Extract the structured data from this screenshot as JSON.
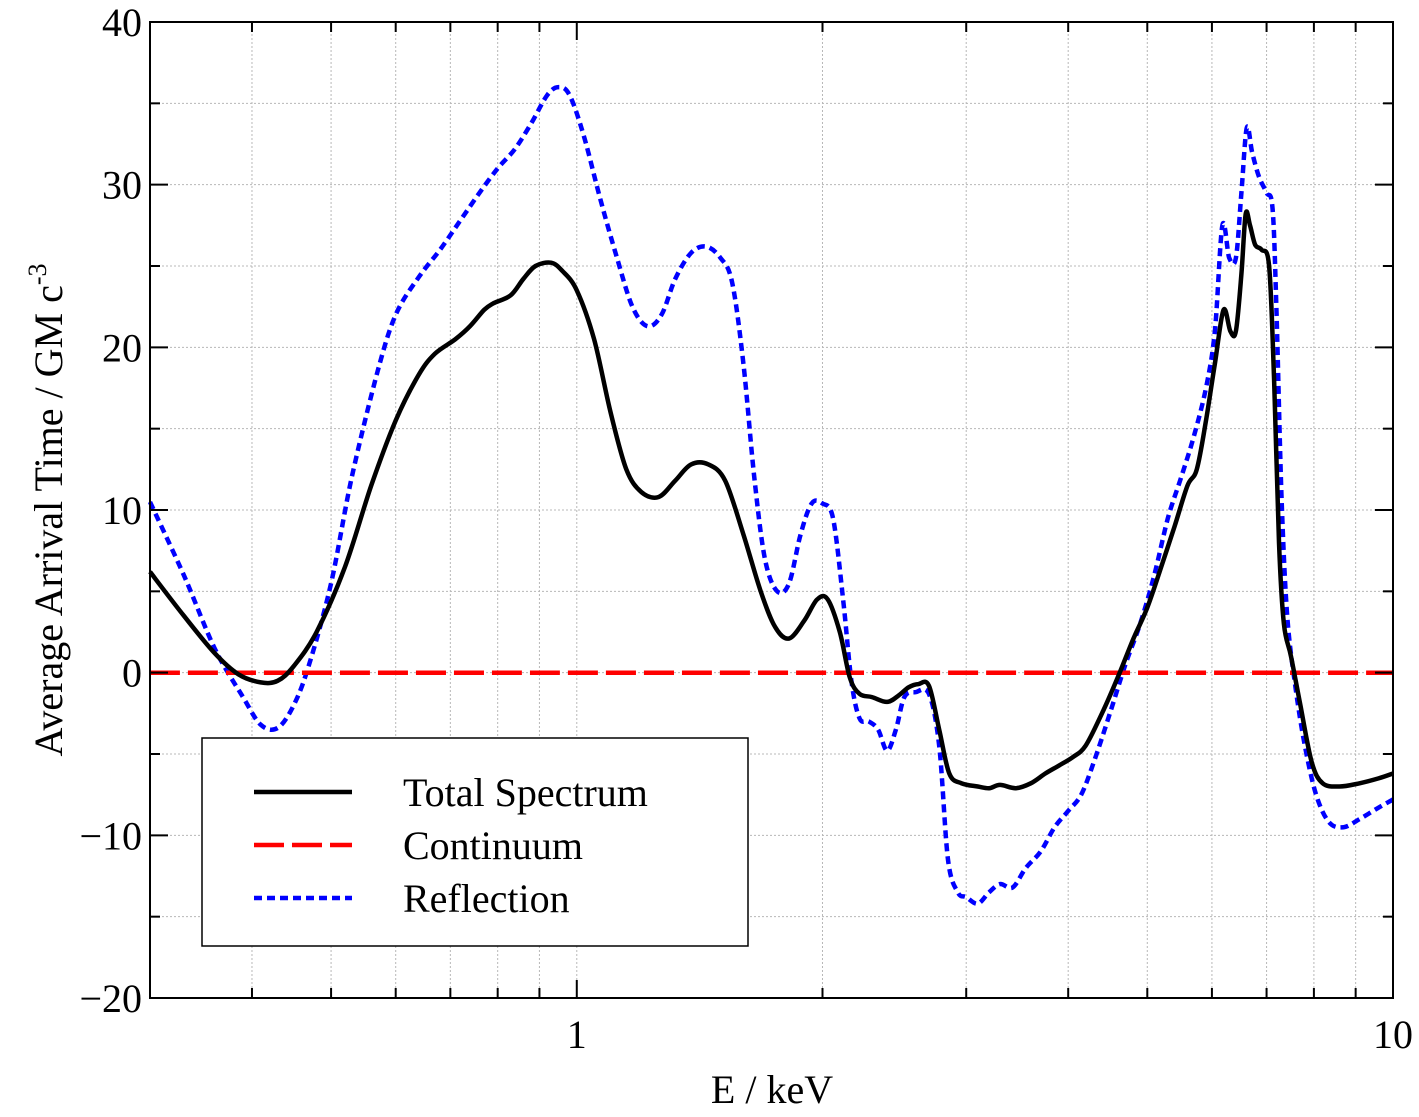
{
  "chart_data": {
    "type": "line",
    "title": "",
    "xlabel": "E / keV",
    "ylabel": "Average Arrival Time / GM c",
    "ylabel_superscript": "-3",
    "xscale": "log",
    "xlim": [
      0.3,
      10
    ],
    "ylim": [
      -20,
      40
    ],
    "grid": true,
    "legend_position": "lower-left",
    "x_ticks": [
      {
        "value": 1,
        "label": "1"
      },
      {
        "value": 10,
        "label": "10"
      }
    ],
    "y_ticks": [
      {
        "value": -20,
        "label": "−20"
      },
      {
        "value": -10,
        "label": "−10"
      },
      {
        "value": 0,
        "label": "0"
      },
      {
        "value": 10,
        "label": "10"
      },
      {
        "value": 20,
        "label": "20"
      },
      {
        "value": 30,
        "label": "30"
      },
      {
        "value": 40,
        "label": "40"
      }
    ],
    "series": [
      {
        "name": "Total Spectrum",
        "color": "#000000",
        "style": "solid",
        "points": [
          [
            0.3,
            6.2
          ],
          [
            0.33,
            3.5
          ],
          [
            0.36,
            1.2
          ],
          [
            0.385,
            -0.1
          ],
          [
            0.41,
            -0.6
          ],
          [
            0.43,
            -0.5
          ],
          [
            0.45,
            0.4
          ],
          [
            0.48,
            2.5
          ],
          [
            0.52,
            6.5
          ],
          [
            0.56,
            11.5
          ],
          [
            0.6,
            15.5
          ],
          [
            0.64,
            18.3
          ],
          [
            0.67,
            19.6
          ],
          [
            0.71,
            20.5
          ],
          [
            0.74,
            21.3
          ],
          [
            0.77,
            22.3
          ],
          [
            0.79,
            22.7
          ],
          [
            0.83,
            23.2
          ],
          [
            0.86,
            24.2
          ],
          [
            0.89,
            25.0
          ],
          [
            0.93,
            25.2
          ],
          [
            0.96,
            24.7
          ],
          [
            1.0,
            23.5
          ],
          [
            1.05,
            20.5
          ],
          [
            1.1,
            16.0
          ],
          [
            1.15,
            12.5
          ],
          [
            1.2,
            11.1
          ],
          [
            1.26,
            10.8
          ],
          [
            1.32,
            11.8
          ],
          [
            1.38,
            12.8
          ],
          [
            1.45,
            12.8
          ],
          [
            1.52,
            11.8
          ],
          [
            1.6,
            8.5
          ],
          [
            1.68,
            5.0
          ],
          [
            1.75,
            2.8
          ],
          [
            1.82,
            2.1
          ],
          [
            1.9,
            3.2
          ],
          [
            1.97,
            4.5
          ],
          [
            2.03,
            4.5
          ],
          [
            2.1,
            2.5
          ],
          [
            2.16,
            -0.3
          ],
          [
            2.22,
            -1.3
          ],
          [
            2.3,
            -1.5
          ],
          [
            2.4,
            -1.8
          ],
          [
            2.48,
            -1.4
          ],
          [
            2.55,
            -0.9
          ],
          [
            2.62,
            -0.7
          ],
          [
            2.7,
            -0.8
          ],
          [
            2.78,
            -3.5
          ],
          [
            2.86,
            -6.2
          ],
          [
            2.96,
            -6.8
          ],
          [
            3.1,
            -7.0
          ],
          [
            3.2,
            -7.1
          ],
          [
            3.3,
            -6.9
          ],
          [
            3.45,
            -7.1
          ],
          [
            3.6,
            -6.8
          ],
          [
            3.75,
            -6.2
          ],
          [
            3.9,
            -5.7
          ],
          [
            4.05,
            -5.2
          ],
          [
            4.2,
            -4.5
          ],
          [
            4.4,
            -2.5
          ],
          [
            4.6,
            -0.3
          ],
          [
            4.8,
            2.0
          ],
          [
            5.0,
            4.0
          ],
          [
            5.2,
            6.5
          ],
          [
            5.4,
            9.0
          ],
          [
            5.6,
            11.5
          ],
          [
            5.75,
            12.5
          ],
          [
            5.9,
            15.5
          ],
          [
            6.05,
            19.0
          ],
          [
            6.2,
            22.3
          ],
          [
            6.32,
            21.0
          ],
          [
            6.42,
            21.0
          ],
          [
            6.52,
            24.5
          ],
          [
            6.6,
            28.2
          ],
          [
            6.68,
            27.5
          ],
          [
            6.78,
            26.3
          ],
          [
            6.9,
            26.0
          ],
          [
            7.05,
            25.0
          ],
          [
            7.15,
            18.0
          ],
          [
            7.25,
            8.0
          ],
          [
            7.35,
            3.0
          ],
          [
            7.5,
            1.0
          ],
          [
            7.7,
            -2.0
          ],
          [
            7.95,
            -5.5
          ],
          [
            8.2,
            -6.8
          ],
          [
            8.6,
            -7.0
          ],
          [
            9.1,
            -6.8
          ],
          [
            9.6,
            -6.5
          ],
          [
            10.0,
            -6.2
          ]
        ]
      },
      {
        "name": "Continuum",
        "color": "#ff0000",
        "style": "dashed",
        "points": [
          [
            0.3,
            0
          ],
          [
            10.0,
            0
          ]
        ]
      },
      {
        "name": "Reflection",
        "color": "#0000ff",
        "style": "dotted",
        "points": [
          [
            0.3,
            10.5
          ],
          [
            0.33,
            6.0
          ],
          [
            0.36,
            1.5
          ],
          [
            0.39,
            -1.5
          ],
          [
            0.41,
            -3.2
          ],
          [
            0.43,
            -3.4
          ],
          [
            0.45,
            -2.0
          ],
          [
            0.47,
            0.5
          ],
          [
            0.5,
            5.5
          ],
          [
            0.53,
            12.0
          ],
          [
            0.57,
            18.5
          ],
          [
            0.6,
            22.0
          ],
          [
            0.64,
            24.3
          ],
          [
            0.68,
            26.0
          ],
          [
            0.72,
            27.8
          ],
          [
            0.76,
            29.5
          ],
          [
            0.8,
            31.0
          ],
          [
            0.84,
            32.2
          ],
          [
            0.88,
            33.8
          ],
          [
            0.92,
            35.5
          ],
          [
            0.95,
            36.0
          ],
          [
            0.98,
            35.5
          ],
          [
            1.02,
            33.0
          ],
          [
            1.07,
            29.0
          ],
          [
            1.12,
            25.5
          ],
          [
            1.17,
            22.5
          ],
          [
            1.22,
            21.3
          ],
          [
            1.27,
            22.0
          ],
          [
            1.32,
            24.2
          ],
          [
            1.38,
            25.8
          ],
          [
            1.44,
            26.2
          ],
          [
            1.5,
            25.5
          ],
          [
            1.55,
            24.0
          ],
          [
            1.6,
            19.0
          ],
          [
            1.65,
            12.0
          ],
          [
            1.7,
            7.0
          ],
          [
            1.76,
            5.0
          ],
          [
            1.82,
            5.5
          ],
          [
            1.88,
            8.5
          ],
          [
            1.94,
            10.4
          ],
          [
            2.0,
            10.4
          ],
          [
            2.06,
            9.5
          ],
          [
            2.12,
            4.5
          ],
          [
            2.17,
            -0.5
          ],
          [
            2.22,
            -2.8
          ],
          [
            2.28,
            -3.0
          ],
          [
            2.34,
            -3.5
          ],
          [
            2.4,
            -4.8
          ],
          [
            2.46,
            -3.5
          ],
          [
            2.52,
            -1.5
          ],
          [
            2.6,
            -1.2
          ],
          [
            2.7,
            -1.3
          ],
          [
            2.78,
            -4.5
          ],
          [
            2.85,
            -11.5
          ],
          [
            2.93,
            -13.5
          ],
          [
            3.0,
            -13.8
          ],
          [
            3.1,
            -14.2
          ],
          [
            3.2,
            -13.5
          ],
          [
            3.3,
            -13.0
          ],
          [
            3.42,
            -13.2
          ],
          [
            3.55,
            -12.0
          ],
          [
            3.7,
            -11.0
          ],
          [
            3.85,
            -9.5
          ],
          [
            4.0,
            -8.5
          ],
          [
            4.15,
            -7.5
          ],
          [
            4.3,
            -5.5
          ],
          [
            4.5,
            -2.5
          ],
          [
            4.7,
            0.5
          ],
          [
            4.9,
            3.0
          ],
          [
            5.1,
            6.0
          ],
          [
            5.3,
            9.5
          ],
          [
            5.5,
            12.0
          ],
          [
            5.7,
            14.5
          ],
          [
            5.9,
            17.5
          ],
          [
            6.05,
            21.0
          ],
          [
            6.18,
            27.5
          ],
          [
            6.3,
            25.5
          ],
          [
            6.42,
            25.5
          ],
          [
            6.52,
            29.5
          ],
          [
            6.62,
            33.5
          ],
          [
            6.72,
            32.0
          ],
          [
            6.85,
            30.5
          ],
          [
            7.0,
            29.5
          ],
          [
            7.12,
            28.5
          ],
          [
            7.2,
            22.0
          ],
          [
            7.3,
            11.0
          ],
          [
            7.42,
            3.5
          ],
          [
            7.6,
            -1.0
          ],
          [
            7.8,
            -4.5
          ],
          [
            8.05,
            -7.5
          ],
          [
            8.35,
            -9.2
          ],
          [
            8.7,
            -9.5
          ],
          [
            9.1,
            -9.0
          ],
          [
            9.6,
            -8.3
          ],
          [
            10.0,
            -7.8
          ]
        ]
      }
    ],
    "legend": [
      {
        "label": "Total Spectrum",
        "color": "#000000",
        "style": "solid"
      },
      {
        "label": "Continuum",
        "color": "#ff0000",
        "style": "dashed"
      },
      {
        "label": "Reflection",
        "color": "#0000ff",
        "style": "dotted"
      }
    ]
  }
}
